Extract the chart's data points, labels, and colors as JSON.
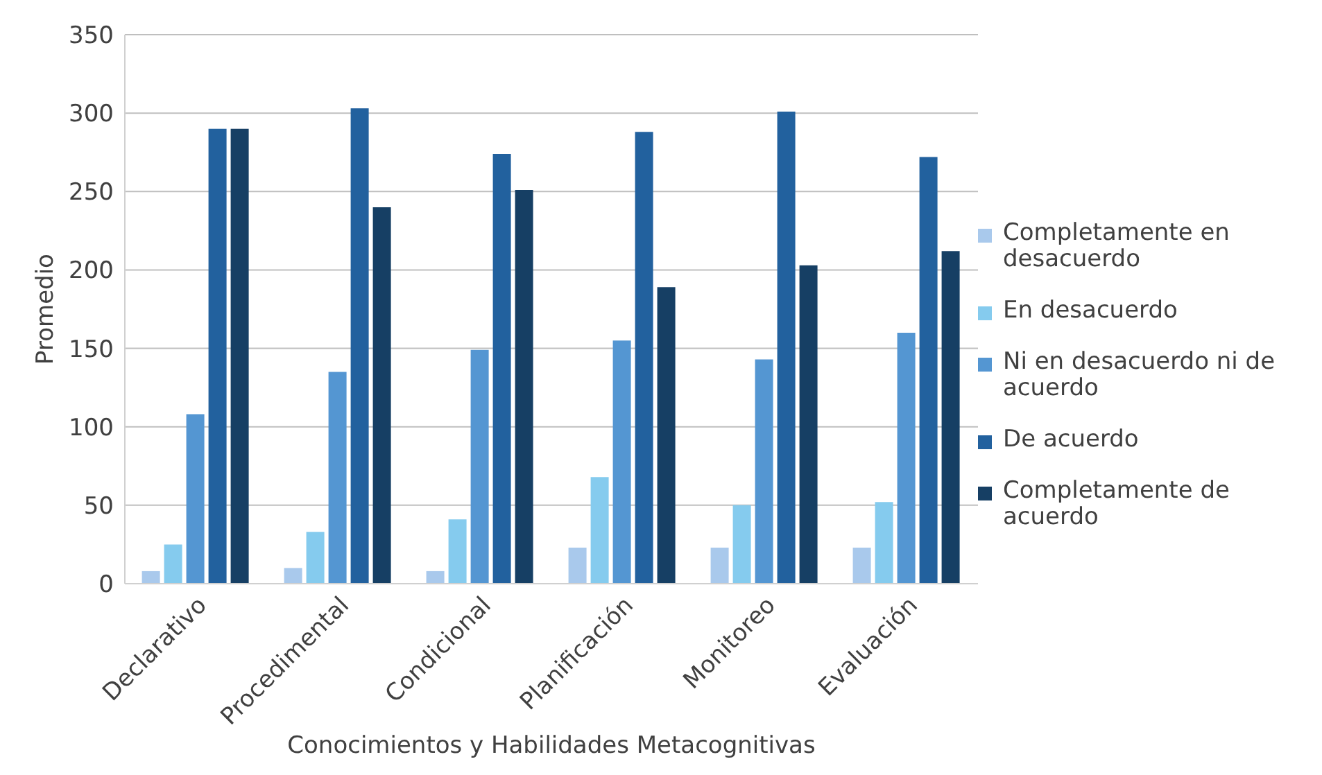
{
  "chart_data": {
    "type": "bar",
    "xlabel": "Conocimientos y Habilidades Metacognitivas",
    "ylabel": "Promedio",
    "categories": [
      "Declarativo",
      "Procedimental",
      "Condicional",
      "Planificación",
      "Monitoreo",
      "Evaluación"
    ],
    "series": [
      {
        "name": "Completamente en desacuerdo",
        "color": "#a9c9ec",
        "values": [
          8,
          10,
          8,
          23,
          23,
          23
        ]
      },
      {
        "name": "En desacuerdo",
        "color": "#85cbee",
        "values": [
          25,
          33,
          41,
          68,
          50,
          52
        ]
      },
      {
        "name": "Ni en desacuerdo ni de acuerdo",
        "color": "#5496d2",
        "values": [
          108,
          135,
          149,
          155,
          143,
          160
        ]
      },
      {
        "name": "De acuerdo",
        "color": "#22619e",
        "values": [
          290,
          303,
          274,
          288,
          301,
          272
        ]
      },
      {
        "name": "Completamente de acuerdo",
        "color": "#163f64",
        "values": [
          290,
          240,
          251,
          189,
          203,
          212
        ]
      }
    ],
    "ylim": [
      0,
      350
    ],
    "yticks": [
      0,
      50,
      100,
      150,
      200,
      250,
      300,
      350
    ],
    "grid": "y",
    "legend": "right"
  }
}
